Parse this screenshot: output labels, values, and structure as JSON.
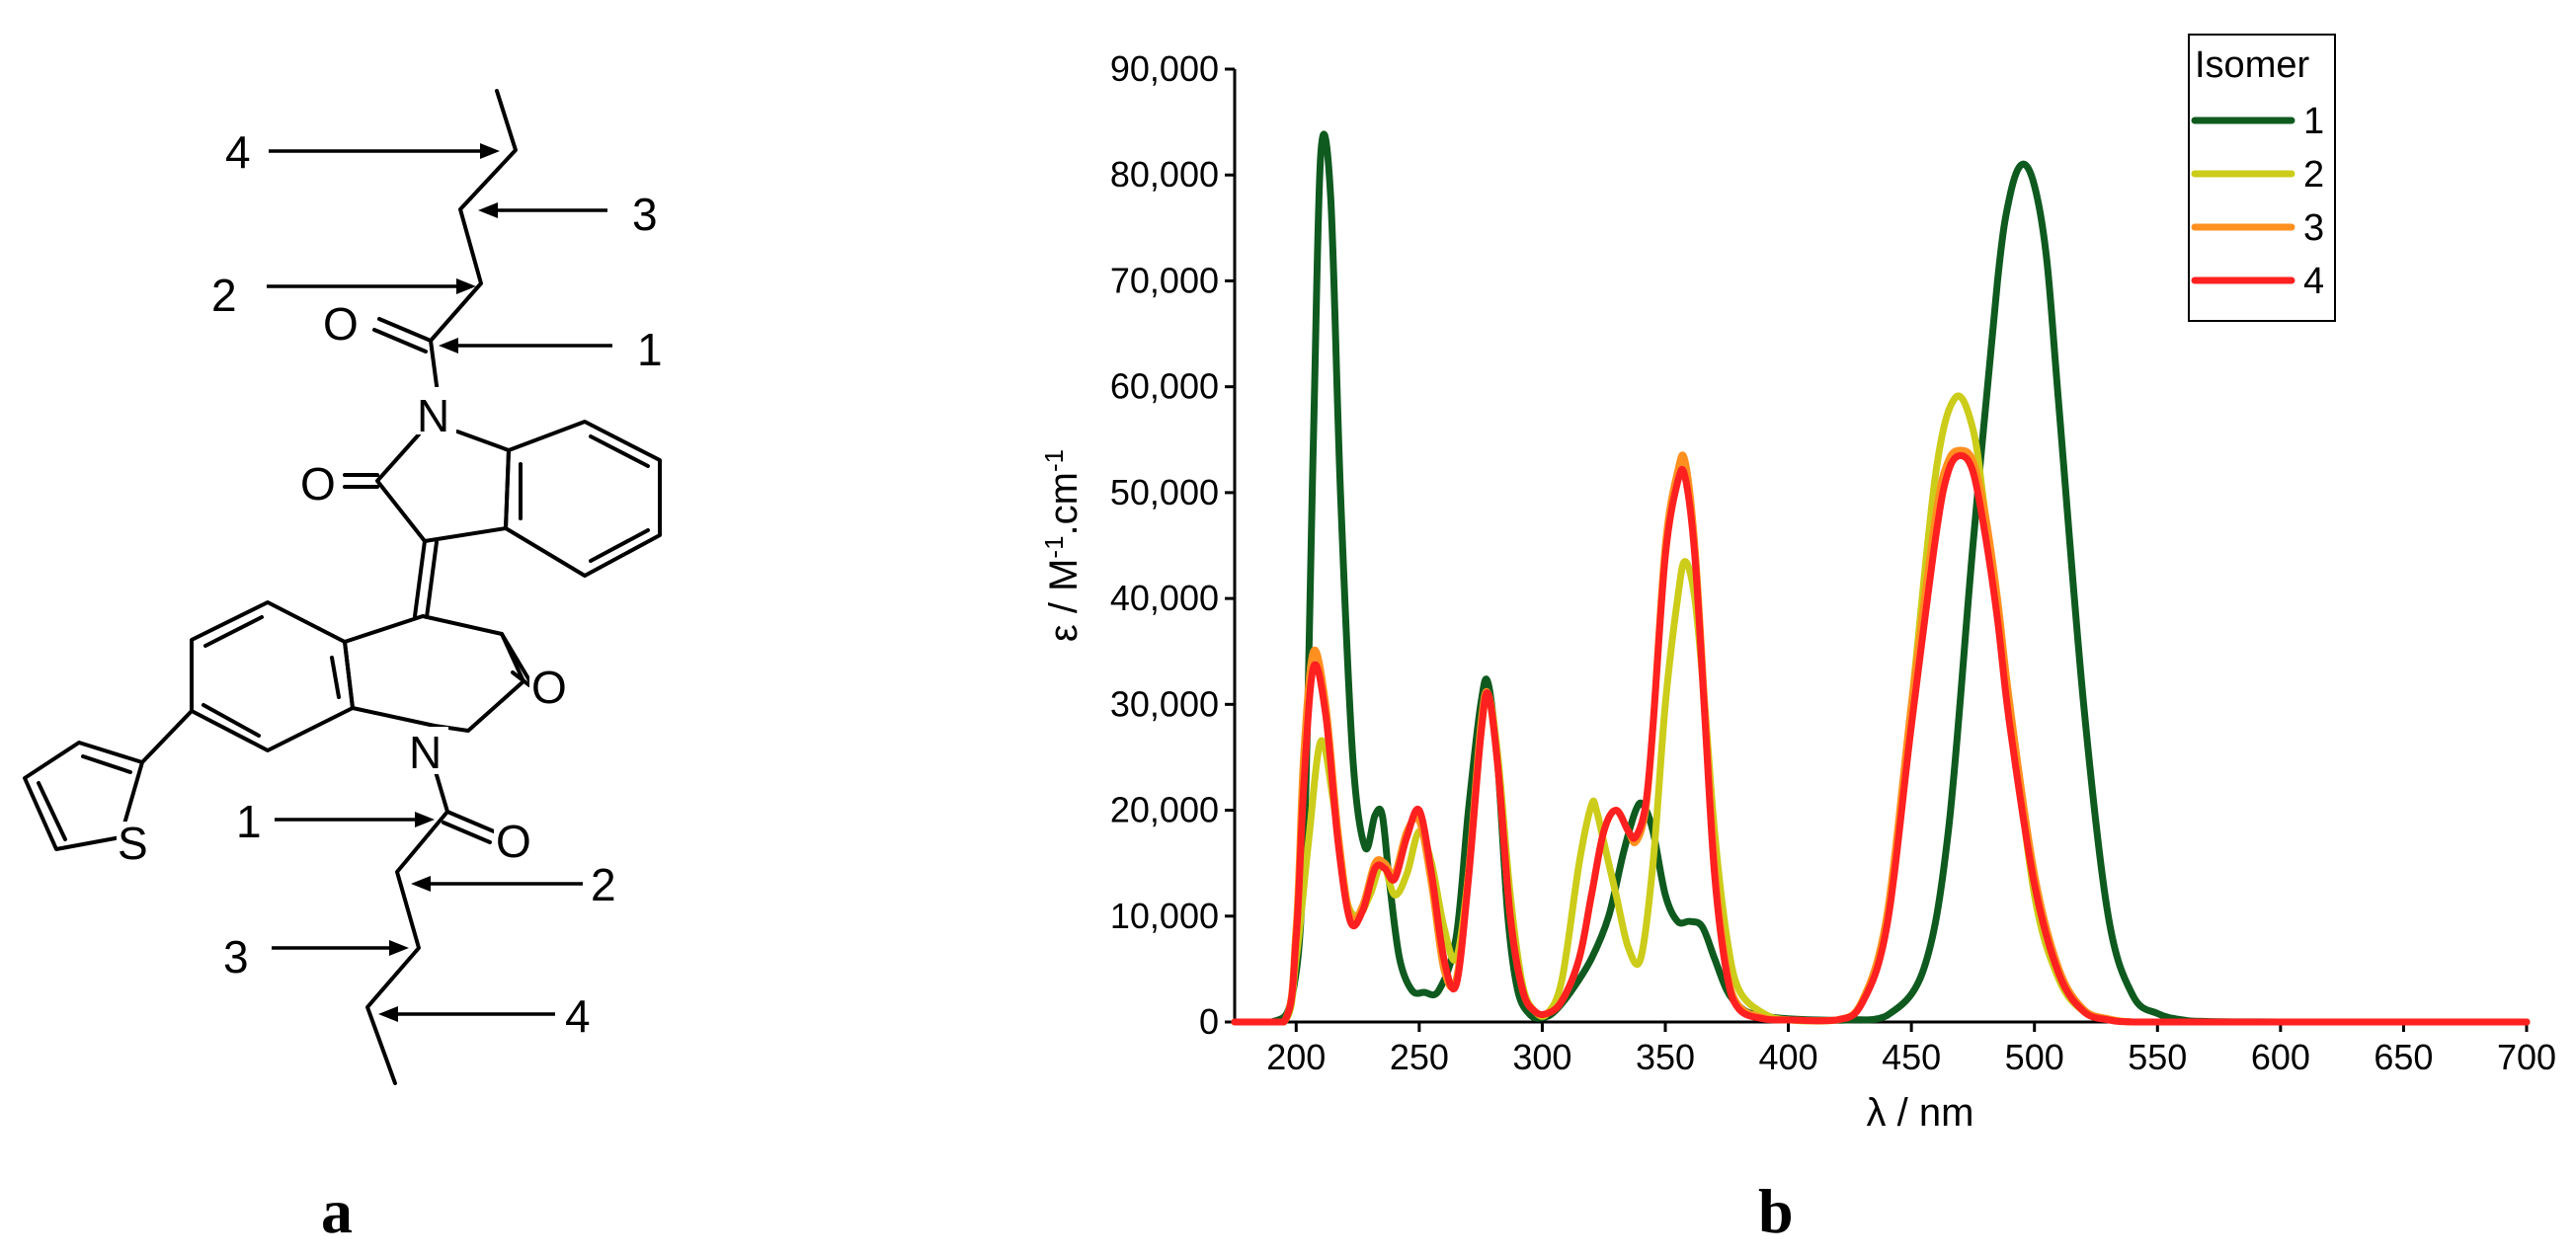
{
  "panels": {
    "a": "a",
    "b": "b"
  },
  "molecule": {
    "atoms": {
      "O": "O",
      "N": "N",
      "S": "S"
    },
    "chain_labels": [
      "1",
      "2",
      "3",
      "4"
    ]
  },
  "colors": {
    "isomer1": "#0f5a1f",
    "isomer2": "#cccc1a",
    "isomer3": "#ff9020",
    "isomer4": "#ff2020"
  },
  "chart_data": {
    "type": "line",
    "xlabel": "λ  / nm",
    "ylabel": "ε / M",
    "ylabel_sup1": "-1",
    "ylabel_mid": ".cm",
    "ylabel_sup2": "-1",
    "xlim": [
      175,
      700
    ],
    "ylim": [
      0,
      90000
    ],
    "xticks": [
      200,
      250,
      300,
      350,
      400,
      450,
      500,
      550,
      600,
      650,
      700
    ],
    "yticks": [
      0,
      10000,
      20000,
      30000,
      40000,
      50000,
      60000,
      70000,
      80000,
      90000
    ],
    "ytick_labels": [
      "0",
      "10,000",
      "20,000",
      "30,000",
      "40,000",
      "50,000",
      "60,000",
      "70,000",
      "80,000",
      "90,000"
    ],
    "legend": {
      "title": "Isomer",
      "position": "top-right"
    },
    "series": [
      {
        "name": "1",
        "color": "#0f5a1f",
        "x": [
          175,
          190,
          198,
          203,
          207,
          210,
          214,
          218,
          223,
          228,
          232,
          235,
          238,
          242,
          247,
          252,
          258,
          265,
          270,
          275,
          278,
          282,
          286,
          290,
          295,
          300,
          305,
          312,
          320,
          327,
          333,
          338,
          341,
          345,
          350,
          355,
          360,
          365,
          370,
          375,
          380,
          385,
          395,
          410,
          425,
          440,
          455,
          465,
          475,
          485,
          490,
          495,
          500,
          505,
          510,
          520,
          530,
          540,
          550,
          560,
          570,
          600,
          650,
          700
        ],
        "y": [
          0,
          0,
          2000,
          15000,
          55000,
          82000,
          78000,
          50000,
          25000,
          16500,
          19500,
          19500,
          13000,
          6000,
          3000,
          2800,
          3000,
          8000,
          20000,
          30000,
          32000,
          24000,
          10000,
          3000,
          700,
          400,
          1000,
          3000,
          6000,
          10000,
          16000,
          20000,
          20500,
          18000,
          12000,
          9500,
          9500,
          9000,
          6000,
          3000,
          1500,
          800,
          400,
          200,
          200,
          600,
          5000,
          18000,
          45000,
          70000,
          78000,
          81000,
          79000,
          72000,
          58000,
          30000,
          10000,
          2500,
          800,
          200,
          50,
          0,
          0,
          0
        ]
      },
      {
        "name": "2",
        "color": "#cccc1a",
        "x": [
          175,
          195,
          200,
          205,
          210,
          215,
          220,
          225,
          230,
          235,
          240,
          245,
          250,
          255,
          260,
          265,
          270,
          275,
          278,
          282,
          287,
          292,
          297,
          302,
          308,
          315,
          320,
          322,
          325,
          330,
          335,
          340,
          345,
          350,
          355,
          358,
          362,
          366,
          370,
          375,
          380,
          390,
          400,
          420,
          430,
          440,
          450,
          460,
          468,
          475,
          480,
          490,
          500,
          510,
          520,
          530,
          540,
          560,
          600,
          700
        ],
        "y": [
          0,
          0,
          6000,
          17000,
          26500,
          21000,
          12000,
          10000,
          12000,
          15000,
          12000,
          14000,
          18000,
          15000,
          9000,
          6000,
          14000,
          27000,
          31000,
          25000,
          12000,
          3500,
          1000,
          800,
          4000,
          15000,
          20500,
          20000,
          17000,
          12000,
          7000,
          6000,
          15000,
          30000,
          40000,
          43500,
          40000,
          30000,
          18000,
          8000,
          3000,
          800,
          200,
          200,
          2000,
          10000,
          30000,
          52000,
          59000,
          56000,
          48000,
          30000,
          12000,
          4000,
          1000,
          300,
          0,
          0,
          0,
          0
        ]
      },
      {
        "name": "3",
        "color": "#ff9020",
        "x": [
          175,
          195,
          200,
          203,
          207,
          212,
          217,
          222,
          227,
          232,
          236,
          240,
          245,
          250,
          255,
          260,
          265,
          270,
          275,
          278,
          282,
          287,
          292,
          297,
          302,
          308,
          315,
          320,
          325,
          330,
          335,
          338,
          342,
          345,
          350,
          355,
          358,
          362,
          366,
          370,
          375,
          380,
          390,
          400,
          420,
          430,
          440,
          450,
          460,
          465,
          470,
          475,
          480,
          485,
          490,
          500,
          510,
          520,
          530,
          540,
          560,
          600,
          700
        ],
        "y": [
          0,
          0,
          9000,
          25000,
          35000,
          30000,
          18000,
          10000,
          11000,
          15000,
          15000,
          14000,
          18000,
          19000,
          13000,
          5000,
          4000,
          14000,
          28000,
          31000,
          24000,
          10000,
          3000,
          1000,
          800,
          2000,
          6000,
          12000,
          18000,
          20000,
          18000,
          17000,
          20000,
          28000,
          45000,
          52000,
          53000,
          45000,
          30000,
          15000,
          5000,
          1500,
          400,
          200,
          200,
          2000,
          10000,
          30000,
          48000,
          53000,
          54000,
          53000,
          48000,
          40000,
          30000,
          14000,
          5000,
          1200,
          300,
          0,
          0,
          0,
          0
        ]
      },
      {
        "name": "4",
        "color": "#ff2020",
        "x": [
          175,
          195,
          200,
          203,
          207,
          212,
          217,
          222,
          227,
          232,
          236,
          240,
          245,
          250,
          255,
          260,
          265,
          270,
          275,
          278,
          282,
          287,
          292,
          297,
          302,
          308,
          315,
          320,
          325,
          330,
          335,
          338,
          342,
          345,
          350,
          355,
          358,
          362,
          366,
          370,
          375,
          380,
          390,
          400,
          420,
          430,
          440,
          450,
          460,
          465,
          470,
          475,
          480,
          485,
          490,
          500,
          510,
          520,
          530,
          540,
          560,
          600,
          700
        ],
        "y": [
          0,
          0,
          8000,
          22000,
          33500,
          29000,
          17000,
          9500,
          10500,
          14500,
          14500,
          13500,
          17500,
          20000,
          14000,
          6000,
          3500,
          13500,
          27000,
          31000,
          24000,
          10000,
          3000,
          1000,
          800,
          2000,
          6000,
          12000,
          18000,
          20000,
          18000,
          17500,
          20500,
          28000,
          44000,
          51000,
          51500,
          44000,
          29000,
          14000,
          4500,
          1200,
          300,
          200,
          200,
          1800,
          9000,
          28000,
          46000,
          52000,
          53500,
          52000,
          46000,
          38000,
          28000,
          13000,
          4500,
          1000,
          200,
          0,
          0,
          0,
          0
        ]
      }
    ]
  }
}
